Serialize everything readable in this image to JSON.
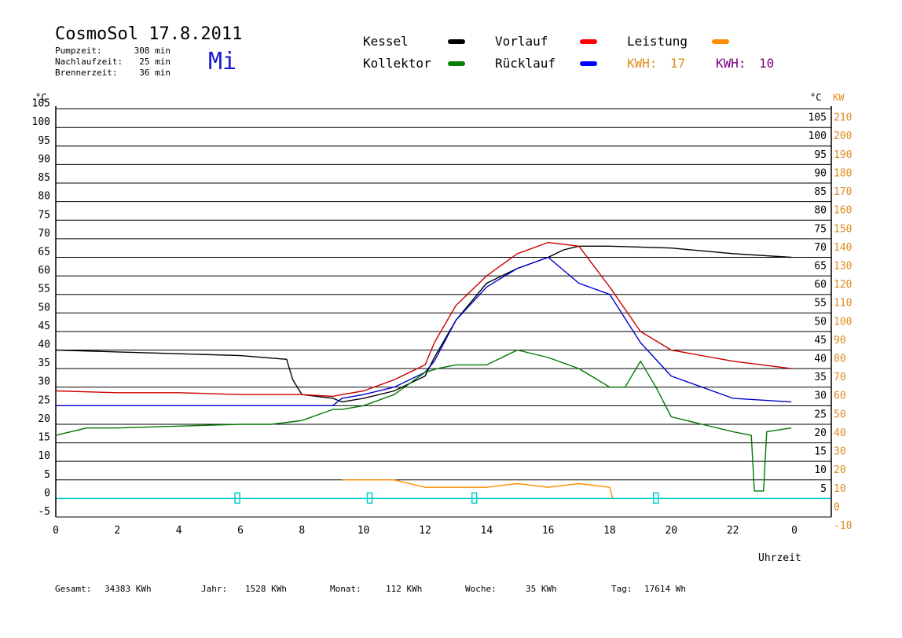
{
  "header": {
    "title": "CosmoSol 17.8.2011",
    "day": "Mi",
    "stats": [
      {
        "label": "Pumpzeit:",
        "value": "308 min"
      },
      {
        "label": "Nachlaufzeit:",
        "value": "25 min"
      },
      {
        "label": "Brennerzeit:",
        "value": "36 min"
      }
    ]
  },
  "legend": {
    "entries": [
      {
        "label": "Kessel",
        "color": "#000000"
      },
      {
        "label": "Vorlauf",
        "color": "#ff0000"
      },
      {
        "label": "Leistung",
        "color": "#ff8c00"
      },
      {
        "label": "Kollektor",
        "color": "#008000"
      },
      {
        "label": "Rücklauf",
        "color": "#0000ff"
      }
    ],
    "kwh": [
      {
        "label": "KWH:",
        "value": "17",
        "color": "#e08a1e"
      },
      {
        "label": "KWH:",
        "value": "10",
        "color": "#800080"
      }
    ]
  },
  "footer": {
    "items": [
      {
        "label": "Gesamt:",
        "value": "34383 KWh"
      },
      {
        "label": "Jahr:",
        "value": "1528 KWh"
      },
      {
        "label": "Monat:",
        "value": "112 KWh"
      },
      {
        "label": "Woche:",
        "value": "35 KWh"
      },
      {
        "label": "Tag:",
        "value": "17614 Wh"
      }
    ]
  },
  "chart_data": {
    "type": "line",
    "xlabel": "Uhrzeit",
    "ylabel_left": "°C",
    "ylabel_right_1": "°C",
    "ylabel_right_2": "KW",
    "xlim": [
      0,
      24
    ],
    "ylim": [
      -5,
      110
    ],
    "x_ticks": [
      "0",
      "2",
      "4",
      "6",
      "8",
      "10",
      "12",
      "14",
      "16",
      "18",
      "20",
      "22",
      "0"
    ],
    "y_ticks_left": [
      "-5",
      "0",
      "5",
      "10",
      "15",
      "20",
      "25",
      "30",
      "35",
      "40",
      "45",
      "50",
      "55",
      "60",
      "65",
      "70",
      "75",
      "80",
      "85",
      "90",
      "95",
      "100",
      "105"
    ],
    "y_ticks_right": [
      "5",
      "10",
      "15",
      "20",
      "25",
      "30",
      "35",
      "40",
      "45",
      "50",
      "55",
      "60",
      "65",
      "70",
      "75",
      "80",
      "85",
      "90",
      "95",
      "100",
      "105"
    ],
    "kw_ticks": [
      "-10",
      "0",
      "10",
      "20",
      "30",
      "40",
      "50",
      "60",
      "70",
      "80",
      "90",
      "100",
      "110",
      "120",
      "130",
      "140",
      "150",
      "160",
      "170",
      "180",
      "190",
      "200",
      "210"
    ],
    "series": [
      {
        "name": "Kessel",
        "color": "#000000",
        "x": [
          0,
          2,
          4,
          6,
          7.5,
          7.7,
          8,
          9,
          9.3,
          10,
          11,
          12,
          12.3,
          13,
          14,
          15,
          16,
          16.5,
          17,
          18,
          20,
          22,
          23.9
        ],
        "y": [
          40,
          39.5,
          39,
          38.5,
          37.5,
          32,
          28,
          27,
          26,
          27,
          29,
          33,
          38,
          48,
          58,
          62,
          65,
          67,
          68,
          68,
          67.5,
          66,
          65
        ]
      },
      {
        "name": "Vorlauf",
        "color": "#cc0000",
        "x": [
          0,
          2,
          4,
          6,
          8,
          9,
          9.3,
          10,
          11,
          12,
          12.3,
          13,
          14,
          15,
          16,
          17,
          18,
          19,
          20,
          22,
          23.9
        ],
        "y": [
          29,
          28.5,
          28.5,
          28,
          28,
          27.5,
          28,
          29,
          32,
          36,
          42,
          52,
          60,
          66,
          69,
          68,
          57,
          45,
          40,
          37,
          35
        ]
      },
      {
        "name": "Rücklauf",
        "color": "#0000cc",
        "x": [
          0,
          2,
          4,
          6,
          8,
          9,
          9.3,
          10,
          11,
          12,
          12.3,
          13,
          14,
          15,
          16,
          17,
          18,
          19,
          20,
          22,
          23.9
        ],
        "y": [
          25,
          25,
          25,
          25,
          25,
          25,
          27,
          28,
          30,
          34,
          37,
          48,
          57,
          62,
          65,
          58,
          55,
          42,
          33,
          27,
          26
        ]
      },
      {
        "name": "Kollektor",
        "color": "#007700",
        "x": [
          0,
          1,
          2,
          4,
          6,
          7,
          8,
          9,
          9.3,
          10,
          11,
          12,
          12.4,
          13,
          14,
          15,
          16,
          17,
          18,
          18.5,
          19,
          19.5,
          20,
          21,
          22,
          22.6,
          22.7,
          23,
          23.1,
          23.9
        ],
        "y": [
          17,
          19,
          19,
          19.5,
          20,
          20,
          21,
          24,
          24,
          25,
          28,
          34,
          35,
          36,
          36,
          40,
          38,
          35,
          30,
          30,
          37,
          30,
          22,
          20,
          18,
          17,
          2,
          2,
          18,
          19
        ]
      },
      {
        "name": "Leistung",
        "color": "#ff8c00",
        "x": [
          9.3,
          10,
          11,
          12,
          13,
          14,
          15,
          16,
          17,
          18,
          18.1
        ],
        "y": [
          5,
          5,
          5,
          3,
          3,
          3,
          4,
          3,
          4,
          3,
          0
        ]
      }
    ]
  }
}
